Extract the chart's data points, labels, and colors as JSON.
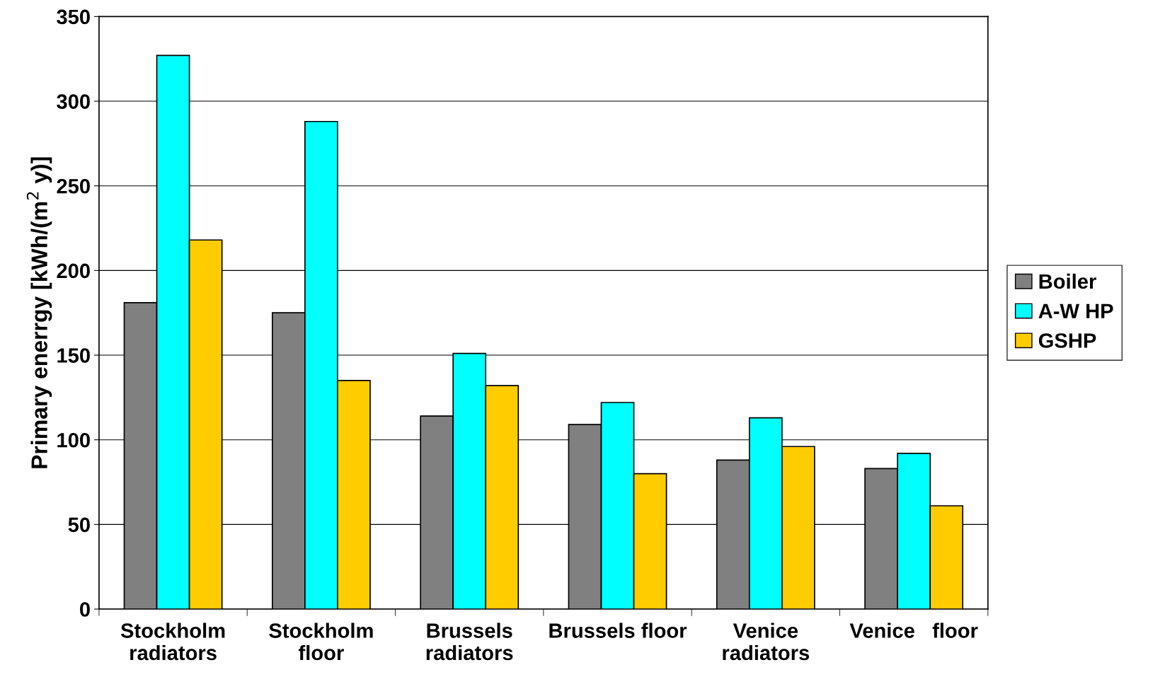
{
  "chart_data": {
    "type": "bar",
    "ylabel": "Primary enerrgy [kWh/(m$^{2}$ y)]",
    "categories": [
      "Stockholm\nradiators",
      "Stockholm\nfloor",
      "Brussels\nradiators",
      "Brussels floor",
      "Venice\nradiators",
      "Venice   floor"
    ],
    "series": [
      {
        "name": "Boiler",
        "color": "#808080",
        "values": [
          181,
          175,
          114,
          109,
          88,
          83
        ]
      },
      {
        "name": "A-W HP",
        "color": "#00ffff",
        "values": [
          327,
          288,
          151,
          122,
          113,
          92
        ]
      },
      {
        "name": "GSHP",
        "color": "#ffcc00",
        "values": [
          218,
          135,
          132,
          80,
          96,
          61
        ]
      }
    ],
    "ylim": [
      0,
      350
    ],
    "yticks": [
      0,
      50,
      100,
      150,
      200,
      250,
      300,
      350
    ],
    "grid": "y",
    "legend": "right"
  }
}
